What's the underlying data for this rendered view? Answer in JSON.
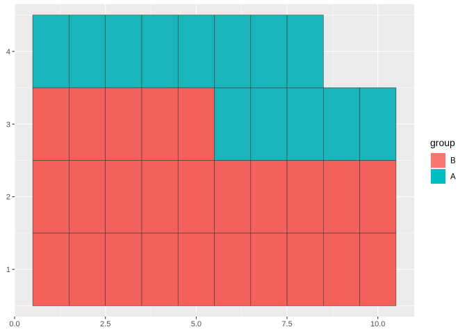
{
  "chart_data": {
    "type": "heatmap",
    "title": "",
    "xlabel": "",
    "ylabel": "",
    "xlim": [
      0,
      11
    ],
    "ylim": [
      0.35,
      4.65
    ],
    "x_ticks": [
      "0.0",
      "2.5",
      "5.0",
      "7.5",
      "10.0"
    ],
    "x_tick_values": [
      0,
      2.5,
      5,
      7.5,
      10
    ],
    "y_ticks": [
      "1",
      "2",
      "3",
      "4"
    ],
    "y_tick_values": [
      1,
      2,
      3,
      4
    ],
    "grid": true,
    "legend": {
      "title": "group",
      "position": "right",
      "entries": [
        {
          "label": "B",
          "color": "#F8766D"
        },
        {
          "label": "A",
          "color": "#00BFC4"
        }
      ]
    },
    "colors": {
      "B": "#F4605B",
      "A": "#1AB5BA",
      "panel": "#EBEBEB",
      "grid": "#FFFFFF",
      "tile_border": "#3a3a3a"
    },
    "tiles": [
      {
        "x": 1,
        "y": 1,
        "group": "B"
      },
      {
        "x": 2,
        "y": 1,
        "group": "B"
      },
      {
        "x": 3,
        "y": 1,
        "group": "B"
      },
      {
        "x": 4,
        "y": 1,
        "group": "B"
      },
      {
        "x": 5,
        "y": 1,
        "group": "B"
      },
      {
        "x": 6,
        "y": 1,
        "group": "B"
      },
      {
        "x": 7,
        "y": 1,
        "group": "B"
      },
      {
        "x": 8,
        "y": 1,
        "group": "B"
      },
      {
        "x": 9,
        "y": 1,
        "group": "B"
      },
      {
        "x": 10,
        "y": 1,
        "group": "B"
      },
      {
        "x": 1,
        "y": 2,
        "group": "B"
      },
      {
        "x": 2,
        "y": 2,
        "group": "B"
      },
      {
        "x": 3,
        "y": 2,
        "group": "B"
      },
      {
        "x": 4,
        "y": 2,
        "group": "B"
      },
      {
        "x": 5,
        "y": 2,
        "group": "B"
      },
      {
        "x": 6,
        "y": 2,
        "group": "B"
      },
      {
        "x": 7,
        "y": 2,
        "group": "B"
      },
      {
        "x": 8,
        "y": 2,
        "group": "B"
      },
      {
        "x": 9,
        "y": 2,
        "group": "B"
      },
      {
        "x": 10,
        "y": 2,
        "group": "B"
      },
      {
        "x": 1,
        "y": 3,
        "group": "B"
      },
      {
        "x": 2,
        "y": 3,
        "group": "B"
      },
      {
        "x": 3,
        "y": 3,
        "group": "B"
      },
      {
        "x": 4,
        "y": 3,
        "group": "B"
      },
      {
        "x": 5,
        "y": 3,
        "group": "B"
      },
      {
        "x": 6,
        "y": 3,
        "group": "A"
      },
      {
        "x": 7,
        "y": 3,
        "group": "A"
      },
      {
        "x": 8,
        "y": 3,
        "group": "A"
      },
      {
        "x": 9,
        "y": 3,
        "group": "A"
      },
      {
        "x": 10,
        "y": 3,
        "group": "A"
      },
      {
        "x": 1,
        "y": 4,
        "group": "A"
      },
      {
        "x": 2,
        "y": 4,
        "group": "A"
      },
      {
        "x": 3,
        "y": 4,
        "group": "A"
      },
      {
        "x": 4,
        "y": 4,
        "group": "A"
      },
      {
        "x": 5,
        "y": 4,
        "group": "A"
      },
      {
        "x": 6,
        "y": 4,
        "group": "A"
      },
      {
        "x": 7,
        "y": 4,
        "group": "A"
      },
      {
        "x": 8,
        "y": 4,
        "group": "A"
      }
    ]
  }
}
